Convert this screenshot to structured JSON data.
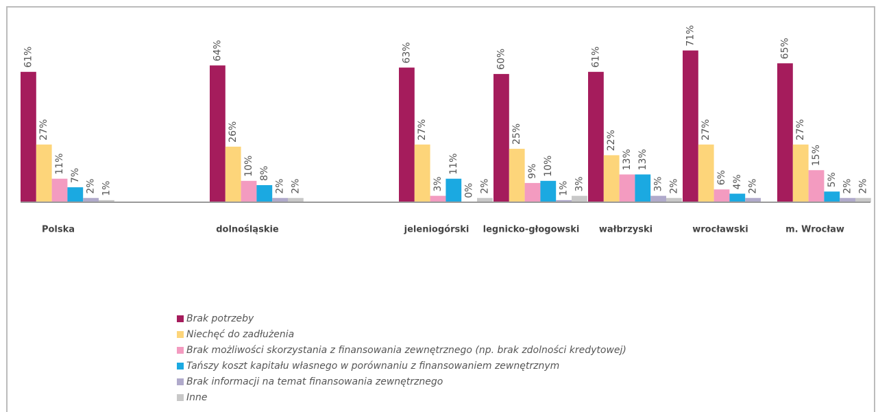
{
  "chart_data": {
    "type": "bar",
    "categories": [
      "Polska",
      null,
      "dolnośląskie",
      null,
      "jeleniogórski",
      "legnicko-głogowski",
      "wałbrzyski",
      "wrocławski",
      "m. Wrocław"
    ],
    "series": [
      {
        "name": "Brak potrzeby",
        "color": "#a51c5c",
        "values": [
          61,
          null,
          64,
          null,
          63,
          60,
          61,
          71,
          65
        ],
        "value_labels": [
          "61%",
          null,
          "64%",
          null,
          "63%",
          "60%",
          "61%",
          "71%",
          "65%"
        ]
      },
      {
        "name": "Niechęć do zadłużenia",
        "color": "#fdd57a",
        "values": [
          27,
          null,
          26,
          null,
          27,
          25,
          22,
          27,
          27
        ],
        "value_labels": [
          "27%",
          null,
          "26%",
          null,
          "27%",
          "25%",
          "22%",
          "27%",
          "27%"
        ]
      },
      {
        "name": "Brak możliwości skorzystania z finansowania zewnętrznego (np. brak zdolności kredytowej)",
        "color": "#f39bc0",
        "values": [
          11,
          null,
          10,
          null,
          3,
          9,
          13,
          6,
          15
        ],
        "value_labels": [
          "11%",
          null,
          "10%",
          null,
          "3%",
          "9%",
          "13%",
          "6%",
          "15%"
        ]
      },
      {
        "name": "Tańszy koszt kapitału własnego w porównaniu z finansowaniem zewnętrznym",
        "color": "#1ba9e1",
        "values": [
          7,
          null,
          8,
          null,
          11,
          10,
          13,
          4,
          5
        ],
        "value_labels": [
          "7%",
          null,
          "8%",
          null,
          "11%",
          "10%",
          "13%",
          "4%",
          "5%"
        ]
      },
      {
        "name": "Brak informacji na temat finansowania zewnętrznego",
        "color": "#b0aacb",
        "values": [
          2,
          null,
          2,
          null,
          0,
          1,
          3,
          2,
          2
        ],
        "value_labels": [
          "2%",
          null,
          "2%",
          null,
          "0%",
          "1%",
          "3%",
          "2%",
          "2%"
        ]
      },
      {
        "name": "Inne",
        "color": "#c8c8c8",
        "values": [
          1,
          null,
          2,
          null,
          2,
          3,
          2,
          null,
          2
        ],
        "value_labels": [
          "1%",
          null,
          "2%",
          null,
          "2%",
          "3%",
          "2%",
          null,
          "2%"
        ]
      }
    ],
    "ylim": [
      0,
      72
    ]
  }
}
